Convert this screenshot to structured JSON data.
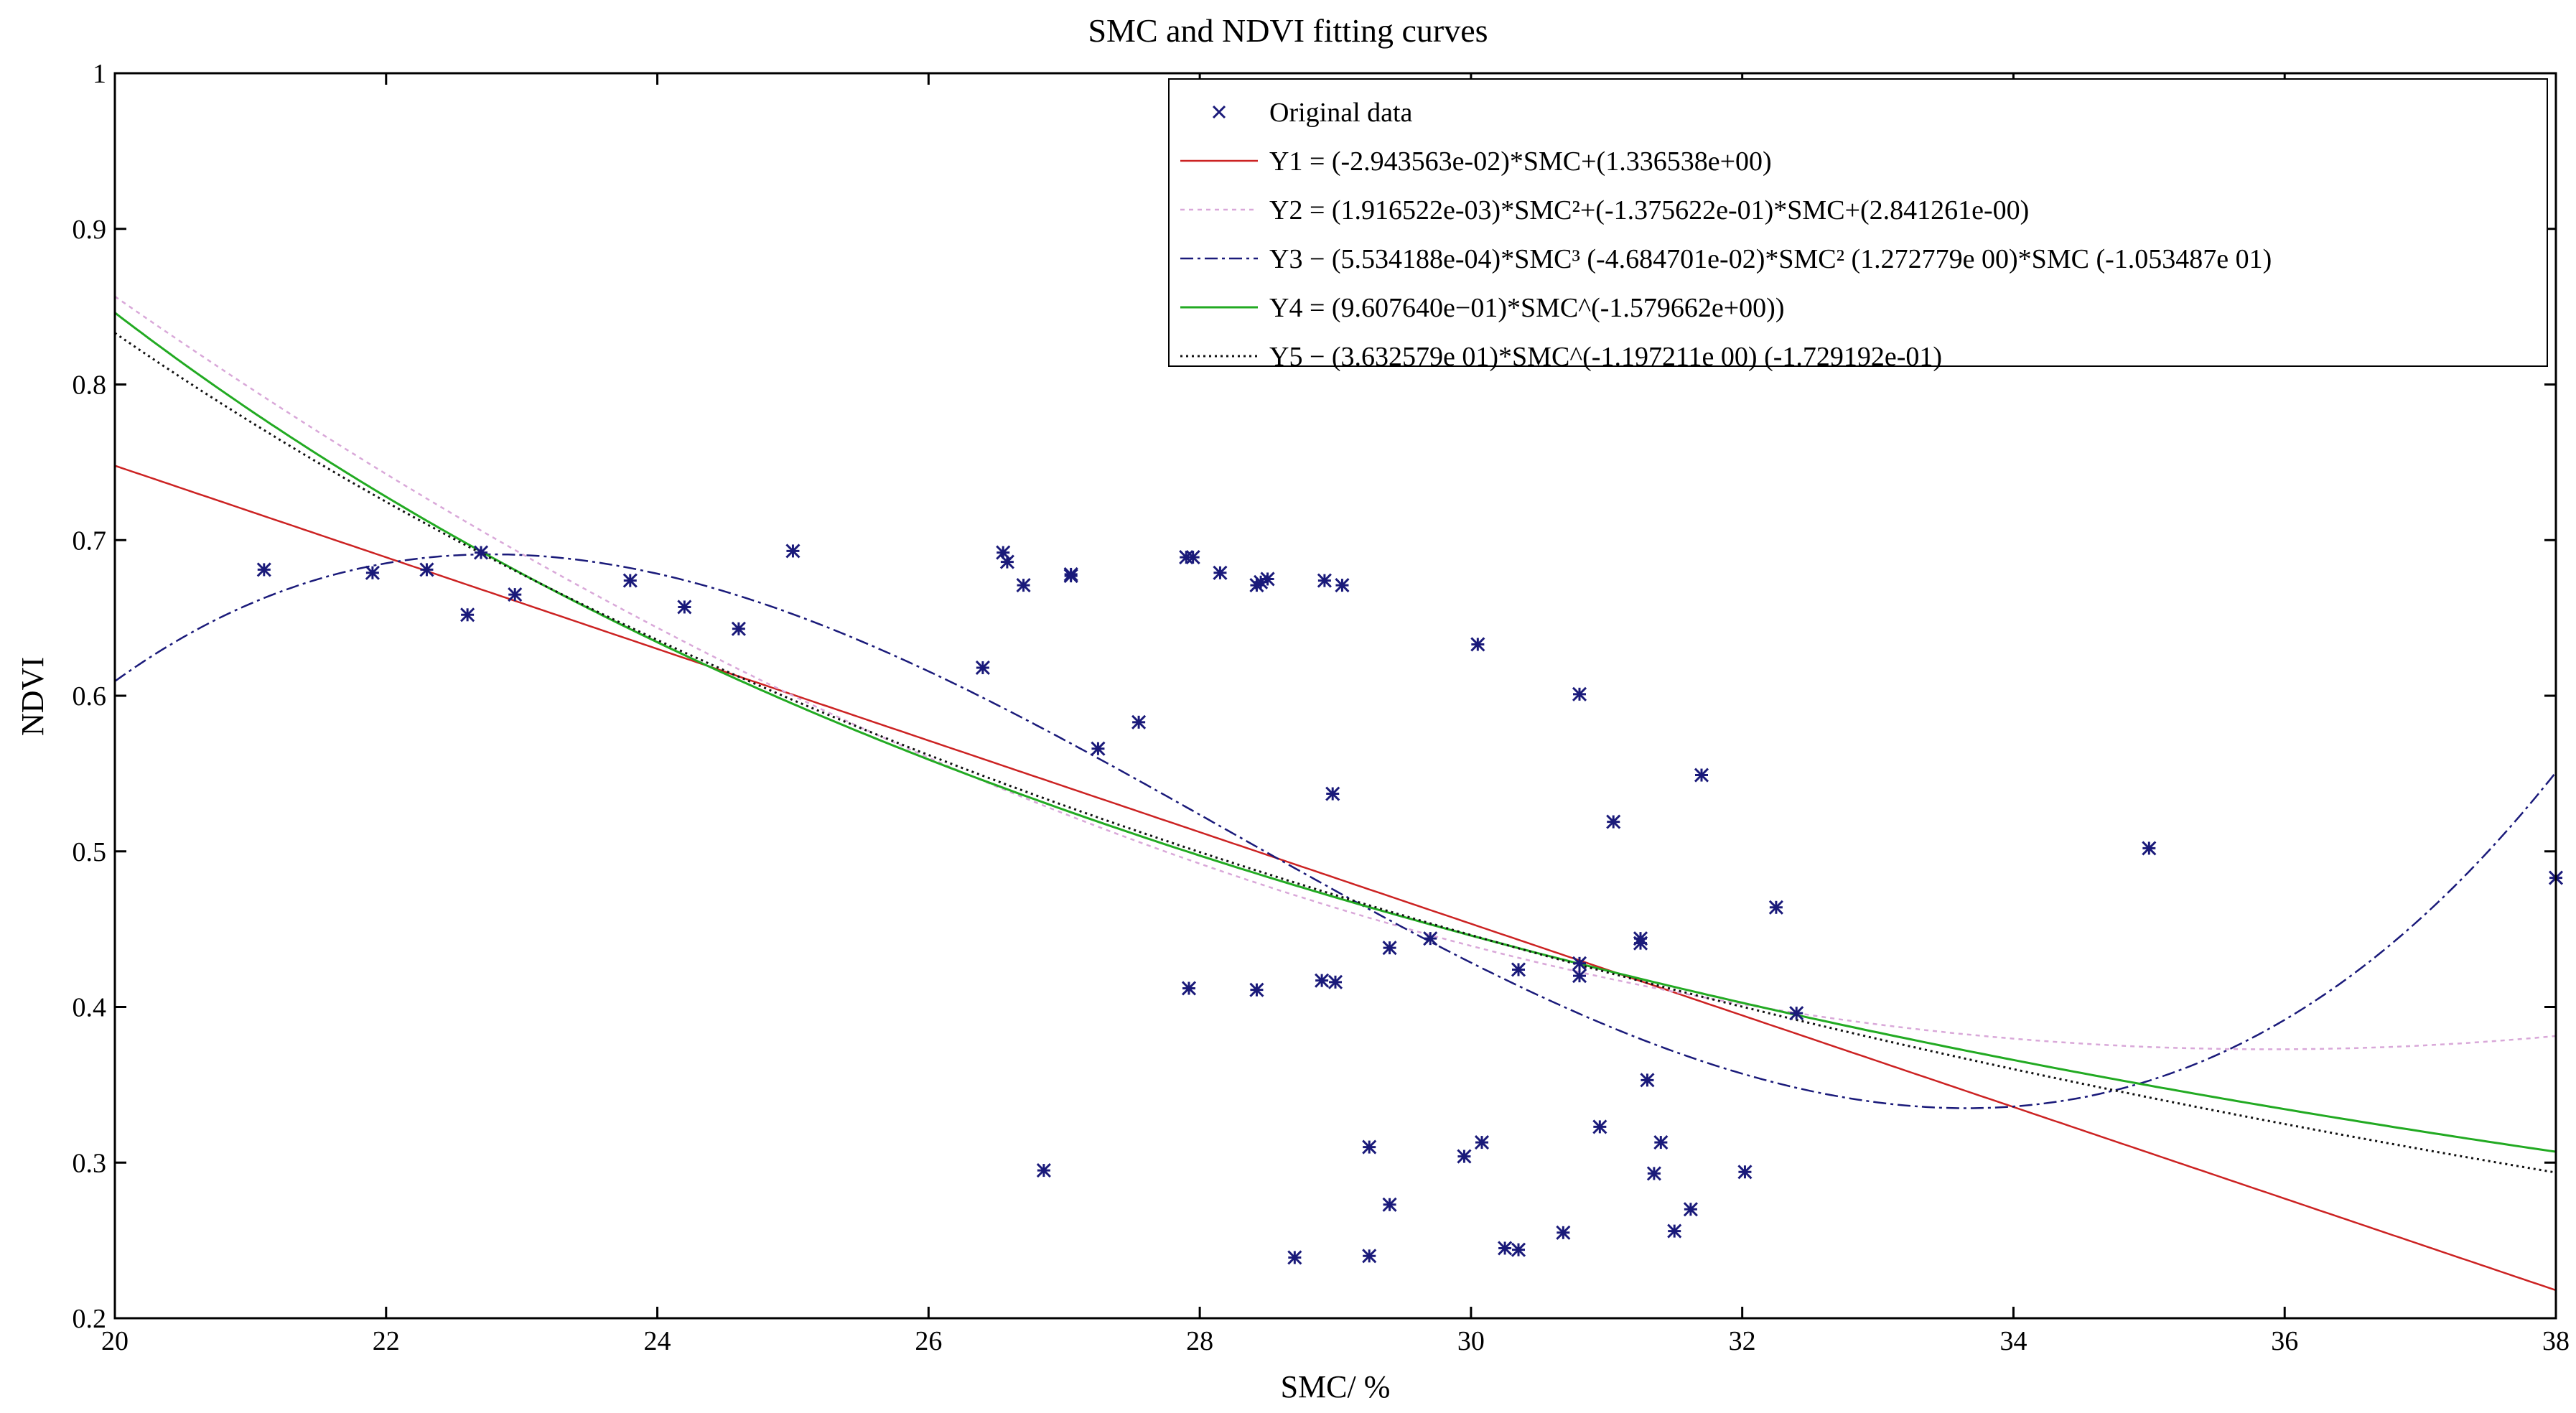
{
  "chart_data": {
    "type": "scatter",
    "title": "SMC and NDVI fitting curves",
    "xlabel": "SMC/ %",
    "ylabel": "NDVI",
    "xlim": [
      20,
      38
    ],
    "ylim": [
      0.2,
      1.0
    ],
    "x_ticks": [
      "20",
      "22",
      "24",
      "26",
      "28",
      "30",
      "32",
      "34",
      "36",
      "38"
    ],
    "y_ticks": [
      "0.2",
      "0.3",
      "0.4",
      "0.5",
      "0.6",
      "0.7",
      "0.8",
      "0.9",
      "1"
    ],
    "grid": false,
    "legend_position": "top-right",
    "colors": {
      "markers": "#1a1a7a",
      "Y1": "#cc2222",
      "Y2": "#d9a8d9",
      "Y3": "#1a1a7a",
      "Y4": "#22aa22",
      "Y5": "#111111"
    },
    "scatter": {
      "name": "Original data",
      "points": [
        [
          21.1,
          0.681
        ],
        [
          21.9,
          0.679
        ],
        [
          22.3,
          0.681
        ],
        [
          22.6,
          0.652
        ],
        [
          22.7,
          0.692
        ],
        [
          22.95,
          0.665
        ],
        [
          23.8,
          0.674
        ],
        [
          24.2,
          0.657
        ],
        [
          24.6,
          0.643
        ],
        [
          25.0,
          0.693
        ],
        [
          26.4,
          0.618
        ],
        [
          26.55,
          0.692
        ],
        [
          26.58,
          0.686
        ],
        [
          26.7,
          0.671
        ],
        [
          27.05,
          0.678
        ],
        [
          27.05,
          0.677
        ],
        [
          27.25,
          0.566
        ],
        [
          27.55,
          0.583
        ],
        [
          27.9,
          0.689
        ],
        [
          27.95,
          0.689
        ],
        [
          28.15,
          0.679
        ],
        [
          28.42,
          0.671
        ],
        [
          28.45,
          0.673
        ],
        [
          28.5,
          0.675
        ],
        [
          28.92,
          0.674
        ],
        [
          29.05,
          0.671
        ],
        [
          28.98,
          0.537
        ],
        [
          27.92,
          0.412
        ],
        [
          28.42,
          0.411
        ],
        [
          28.9,
          0.417
        ],
        [
          29.0,
          0.416
        ],
        [
          29.4,
          0.438
        ],
        [
          29.7,
          0.444
        ],
        [
          30.05,
          0.633
        ],
        [
          30.8,
          0.601
        ],
        [
          31.05,
          0.519
        ],
        [
          31.7,
          0.549
        ],
        [
          30.35,
          0.424
        ],
        [
          30.8,
          0.428
        ],
        [
          30.8,
          0.42
        ],
        [
          31.25,
          0.444
        ],
        [
          31.25,
          0.441
        ],
        [
          32.25,
          0.464
        ],
        [
          32.4,
          0.396
        ],
        [
          35.0,
          0.502
        ],
        [
          38.0,
          0.483
        ],
        [
          26.85,
          0.295
        ],
        [
          28.7,
          0.239
        ],
        [
          29.25,
          0.31
        ],
        [
          29.25,
          0.24
        ],
        [
          29.4,
          0.273
        ],
        [
          29.95,
          0.304
        ],
        [
          30.08,
          0.313
        ],
        [
          30.25,
          0.245
        ],
        [
          30.35,
          0.244
        ],
        [
          30.68,
          0.255
        ],
        [
          30.95,
          0.323
        ],
        [
          31.3,
          0.353
        ],
        [
          31.35,
          0.293
        ],
        [
          31.4,
          0.313
        ],
        [
          31.5,
          0.256
        ],
        [
          31.62,
          0.27
        ],
        [
          32.02,
          0.294
        ]
      ]
    },
    "series": [
      {
        "name": "Y1",
        "label": "Y1 = (-2.943563e-02)*SMC+(1.336538e+00)"
      },
      {
        "name": "Y2",
        "label": "Y2 = (1.916522e-03)*SMC²+(-1.375622e-01)*SMC+(2.841261e-00)"
      },
      {
        "name": "Y3",
        "label": "Y3 − (5.534188e-04)*SMC³ (-4.684701e-02)*SMC² (1.272779e 00)*SMC (-1.053487e 01)"
      },
      {
        "name": "Y4",
        "label": "Y4 = (9.607640e−01)*SMC^(-1.579662e+00))"
      },
      {
        "name": "Y5",
        "label": "Y5 − (3.632579e 01)*SMC^(-1.197211e 00) (-1.729192e-01)"
      }
    ]
  }
}
